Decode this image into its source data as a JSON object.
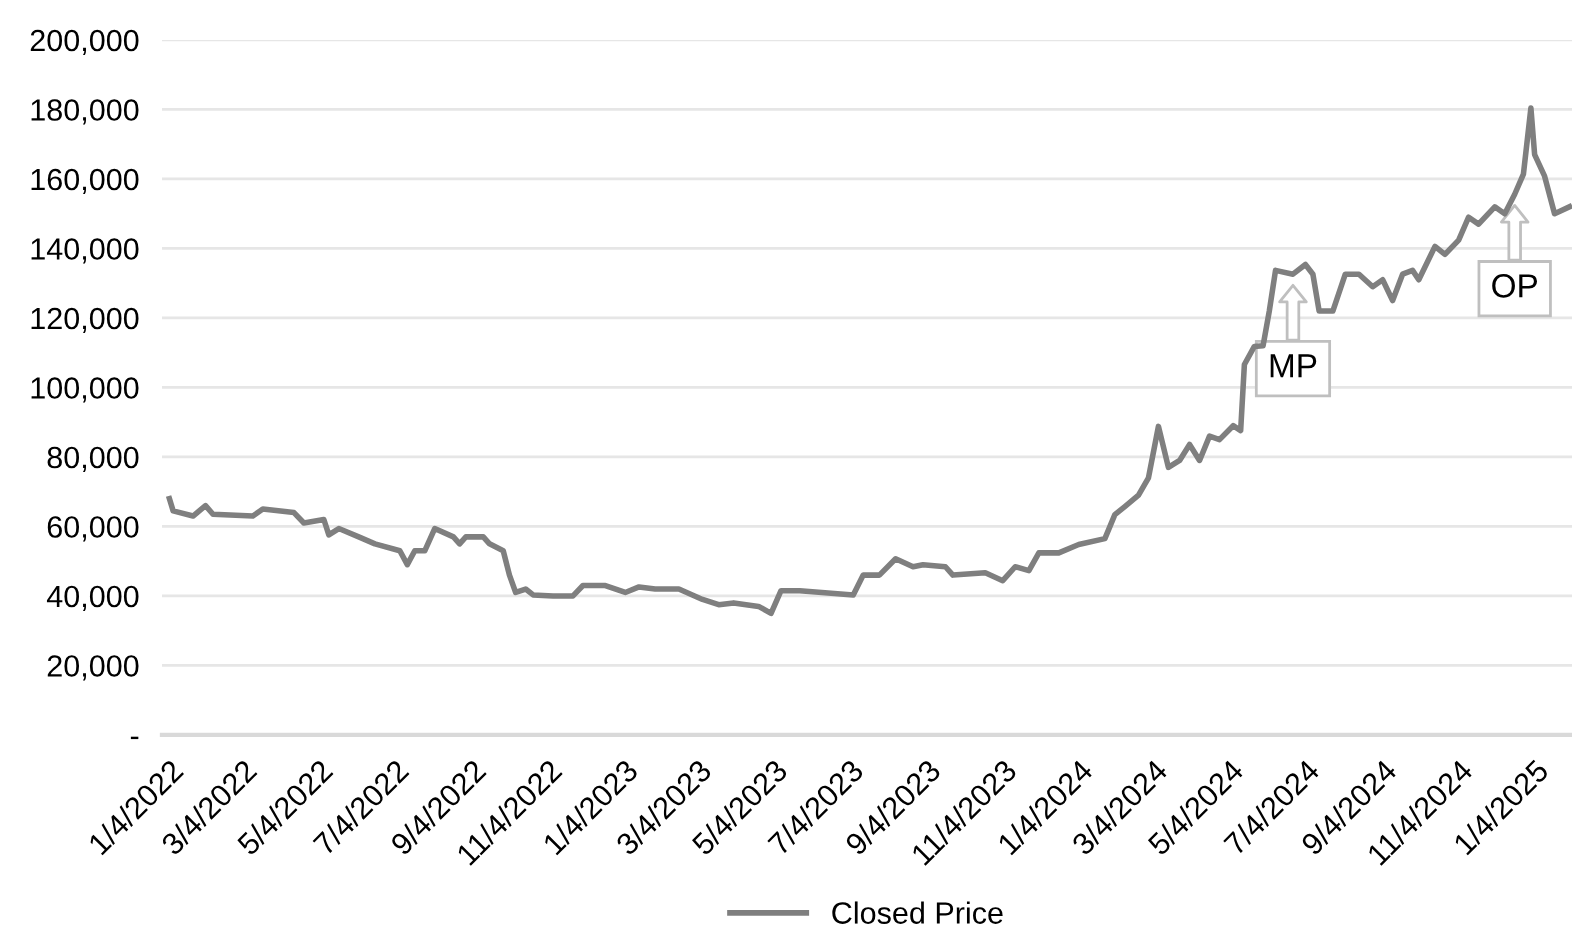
{
  "chart_data": {
    "type": "line",
    "xlim": [
      "2021-12-29",
      "2025-02-03"
    ],
    "xticks": [
      {
        "value": "2022-01-04",
        "label": "1/4/2022"
      },
      {
        "value": "2022-03-04",
        "label": "3/4/2022"
      },
      {
        "value": "2022-05-04",
        "label": "5/4/2022"
      },
      {
        "value": "2022-07-04",
        "label": "7/4/2022"
      },
      {
        "value": "2022-09-04",
        "label": "9/4/2022"
      },
      {
        "value": "2022-11-04",
        "label": "11/4/2022"
      },
      {
        "value": "2023-01-04",
        "label": "1/4/2023"
      },
      {
        "value": "2023-03-04",
        "label": "3/4/2023"
      },
      {
        "value": "2023-05-04",
        "label": "5/4/2023"
      },
      {
        "value": "2023-07-04",
        "label": "7/4/2023"
      },
      {
        "value": "2023-09-04",
        "label": "9/4/2023"
      },
      {
        "value": "2023-11-04",
        "label": "11/4/2023"
      },
      {
        "value": "2024-01-04",
        "label": "1/4/2024"
      },
      {
        "value": "2024-03-04",
        "label": "3/4/2024"
      },
      {
        "value": "2024-05-04",
        "label": "5/4/2024"
      },
      {
        "value": "2024-07-04",
        "label": "7/4/2024"
      },
      {
        "value": "2024-09-04",
        "label": "9/4/2024"
      },
      {
        "value": "2024-11-04",
        "label": "11/4/2024"
      },
      {
        "value": "2025-01-04",
        "label": "1/4/2025"
      }
    ],
    "ylim": [
      0,
      200000
    ],
    "yticks": [
      {
        "value": 0,
        "label": "-"
      },
      {
        "value": 20000,
        "label": "20,000"
      },
      {
        "value": 40000,
        "label": "40,000"
      },
      {
        "value": 60000,
        "label": "60,000"
      },
      {
        "value": 80000,
        "label": "80,000"
      },
      {
        "value": 100000,
        "label": "100,000"
      },
      {
        "value": 120000,
        "label": "120,000"
      },
      {
        "value": 140000,
        "label": "140,000"
      },
      {
        "value": 160000,
        "label": "160,000"
      },
      {
        "value": 180000,
        "label": "180,000"
      },
      {
        "value": 200000,
        "label": "200,000"
      }
    ],
    "grid": "y",
    "legend": "bottom",
    "marker": "none",
    "line_style": "solid",
    "x": [
      "2022-01-04",
      "2022-01-07",
      "2022-01-23",
      "2022-02-02",
      "2022-02-08",
      "2022-03-12",
      "2022-03-20",
      "2022-04-14",
      "2022-04-22",
      "2022-05-08",
      "2022-05-12",
      "2022-05-20",
      "2022-06-05",
      "2022-06-18",
      "2022-07-08",
      "2022-07-14",
      "2022-07-20",
      "2022-07-28",
      "2022-08-05",
      "2022-08-20",
      "2022-08-25",
      "2022-08-30",
      "2022-09-13",
      "2022-09-18",
      "2022-09-29",
      "2022-10-04",
      "2022-10-09",
      "2022-10-17",
      "2022-10-23",
      "2022-11-08",
      "2022-11-24",
      "2022-12-02",
      "2022-12-20",
      "2023-01-05",
      "2023-01-16",
      "2023-01-29",
      "2023-02-17",
      "2023-03-08",
      "2023-03-21",
      "2023-04-02",
      "2023-04-22",
      "2023-05-02",
      "2023-05-10",
      "2023-05-25",
      "2023-07-07",
      "2023-07-15",
      "2023-07-28",
      "2023-08-10",
      "2023-08-24",
      "2023-09-01",
      "2023-09-19",
      "2023-09-25",
      "2023-10-21",
      "2023-11-04",
      "2023-11-14",
      "2023-11-25",
      "2023-12-03",
      "2023-12-19",
      "2024-01-04",
      "2024-01-25",
      "2024-02-02",
      "2024-02-10",
      "2024-02-21",
      "2024-02-29",
      "2024-03-08",
      "2024-03-16",
      "2024-03-25",
      "2024-04-02",
      "2024-04-10",
      "2024-04-18",
      "2024-04-26",
      "2024-05-07",
      "2024-05-13",
      "2024-05-16",
      "2024-05-24",
      "2024-05-31",
      "2024-06-05",
      "2024-06-10",
      "2024-06-24",
      "2024-07-04",
      "2024-07-10",
      "2024-07-15",
      "2024-07-26",
      "2024-08-05",
      "2024-08-16",
      "2024-08-27",
      "2024-09-04",
      "2024-09-12",
      "2024-09-20",
      "2024-09-28",
      "2024-10-03",
      "2024-10-16",
      "2024-10-24",
      "2024-11-04",
      "2024-11-12",
      "2024-11-20",
      "2024-12-03",
      "2024-12-11",
      "2024-12-19",
      "2024-12-26",
      "2025-01-01",
      "2025-01-04",
      "2025-01-12",
      "2025-01-20",
      "2025-02-01"
    ],
    "series": [
      {
        "name": "Closed Price",
        "color": "#7f7f7f",
        "values": [
          68000,
          64500,
          63000,
          66000,
          63500,
          63000,
          65000,
          64000,
          61000,
          62000,
          57600,
          59400,
          57000,
          55000,
          53000,
          49000,
          53000,
          53000,
          59400,
          57000,
          55000,
          57000,
          57000,
          55000,
          53000,
          46000,
          41000,
          42000,
          40300,
          40000,
          40000,
          43000,
          43000,
          41000,
          42600,
          42000,
          42000,
          39000,
          37500,
          38000,
          37000,
          35000,
          41500,
          41500,
          40300,
          46000,
          46000,
          50700,
          48400,
          49000,
          48400,
          46000,
          46700,
          44400,
          48400,
          47300,
          52400,
          52400,
          54800,
          56500,
          63400,
          65700,
          69000,
          74000,
          88800,
          77000,
          79000,
          83600,
          79000,
          86000,
          85000,
          89000,
          87600,
          106600,
          111800,
          112000,
          122000,
          133700,
          132600,
          135400,
          132600,
          122000,
          122000,
          132600,
          132600,
          129000,
          131000,
          125000,
          132600,
          133700,
          131000,
          140600,
          138300,
          142400,
          149000,
          147000,
          152000,
          150000,
          155600,
          161400,
          180400,
          167000,
          160800,
          150000,
          152000
        ]
      }
    ],
    "annotations": [
      {
        "text": "MP",
        "x": "2024-06-24",
        "y": 132600
      },
      {
        "text": "OP",
        "x": "2024-12-19",
        "y": 155600
      }
    ]
  }
}
